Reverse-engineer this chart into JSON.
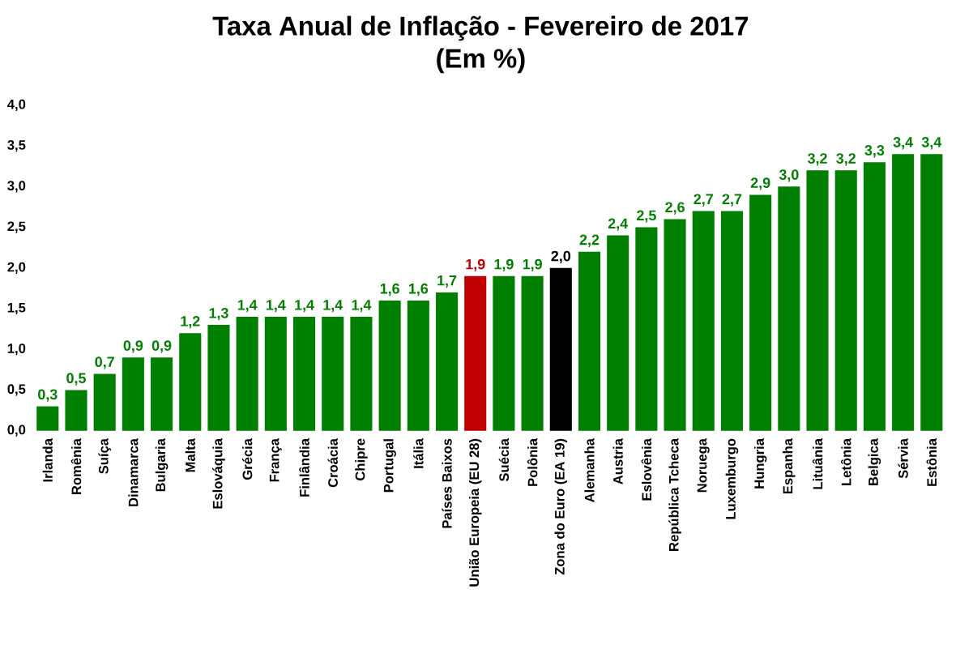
{
  "chart_data": {
    "type": "bar",
    "title": "Taxa Anual de Inflação - Fevereiro de 2017",
    "subtitle": "(Em %)",
    "categories": [
      "Irlanda",
      "Romênia",
      "Suíça",
      "Dinamarca",
      "Bulgaria",
      "Malta",
      "Eslováquia",
      "Grécia",
      "França",
      "Finlândia",
      "Croácia",
      "Chipre",
      "Portugal",
      "Itália",
      "Países Baixos",
      "União Europeia (EU 28)",
      "Suécia",
      "Polônia",
      "Zona do Euro (EA 19)",
      "Alemanha",
      "Austria",
      "Eslovênia",
      "República Tcheca",
      "Noruega",
      "Luxemburgo",
      "Hungria",
      "Espanha",
      "Lituânia",
      "Letônia",
      "Belgica",
      "Sérvia",
      "Estônia"
    ],
    "values": [
      0.3,
      0.5,
      0.7,
      0.9,
      0.9,
      1.2,
      1.3,
      1.4,
      1.4,
      1.4,
      1.4,
      1.4,
      1.6,
      1.6,
      1.7,
      1.9,
      1.9,
      1.9,
      2.0,
      2.2,
      2.4,
      2.5,
      2.6,
      2.7,
      2.7,
      2.9,
      3.0,
      3.2,
      3.2,
      3.3,
      3.4,
      3.4
    ],
    "colors": [
      "#007f00",
      "#007f00",
      "#007f00",
      "#007f00",
      "#007f00",
      "#007f00",
      "#007f00",
      "#007f00",
      "#007f00",
      "#007f00",
      "#007f00",
      "#007f00",
      "#007f00",
      "#007f00",
      "#007f00",
      "#c00000",
      "#007f00",
      "#007f00",
      "#000000",
      "#007f00",
      "#007f00",
      "#007f00",
      "#007f00",
      "#007f00",
      "#007f00",
      "#007f00",
      "#007f00",
      "#007f00",
      "#007f00",
      "#007f00",
      "#007f00",
      "#007f00"
    ],
    "value_labels": [
      "0,3",
      "0,5",
      "0,7",
      "0,9",
      "0,9",
      "1,2",
      "1,3",
      "1,4",
      "1,4",
      "1,4",
      "1,4",
      "1,4",
      "1,6",
      "1,6",
      "1,7",
      "1,9",
      "1,9",
      "1,9",
      "2,0",
      "2,2",
      "2,4",
      "2,5",
      "2,6",
      "2,7",
      "2,7",
      "2,9",
      "3,0",
      "3,2",
      "3,2",
      "3,3",
      "3,4",
      "3,4"
    ],
    "ylim": [
      0,
      4
    ],
    "yticks": [
      {
        "value": 0,
        "label": "0,0"
      },
      {
        "value": 0.5,
        "label": "0,5"
      },
      {
        "value": 1,
        "label": "1,0"
      },
      {
        "value": 1.5,
        "label": "1,5"
      },
      {
        "value": 2,
        "label": "2,0"
      },
      {
        "value": 2.5,
        "label": "2,5"
      },
      {
        "value": 3,
        "label": "3,0"
      },
      {
        "value": 3.5,
        "label": "3,5"
      },
      {
        "value": 4,
        "label": "4,0"
      }
    ]
  }
}
